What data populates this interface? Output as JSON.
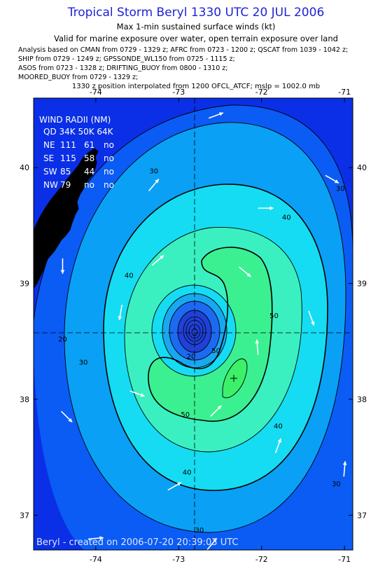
{
  "header": {
    "title": "Tropical Storm Beryl 1330 UTC 20 JUL 2006",
    "subtitle1": "Max 1-min sustained surface winds (kt)",
    "subtitle2": "Valid for marine exposure over water, open terrain exposure over land",
    "source_lines": [
      "Analysis based on  CMAN from 0729 - 1329 z;  AFRC from 0723 - 1200 z;  QSCAT from 1039 - 1042 z;",
      "SHIP from 0729 - 1249 z;  GPSSONDE_WL150 from 0725 - 1115 z;",
      "ASOS from 0723 - 1328 z;  DRIFTING_BUOY from 0800 - 1310 z;",
      "MOORED_BUOY from 0729 - 1329 z;"
    ],
    "position_note": "1330 z position interpolated from 1200 OFCL_ATCF; mslp = 1002.0 mb"
  },
  "wind_radii": {
    "title": "WIND RADII (NM)",
    "header": "QD 34K 50K 64K",
    "rows": [
      {
        "quadrant": "NE",
        "r34": "111",
        "r50": "61",
        "r64": "no"
      },
      {
        "quadrant": "SE",
        "r34": "115",
        "r50": "58",
        "r64": "no"
      },
      {
        "quadrant": "SW",
        "r34": "85",
        "r50": "44",
        "r64": "no"
      },
      {
        "quadrant": "NW",
        "r34": "79",
        "r50": "no",
        "r64": "no"
      }
    ]
  },
  "footer": "Beryl - created on 2006-07-20 20:39:03 UTC",
  "colors": {
    "title": "#1f23d6",
    "band_lt20": "#0a2fe6",
    "band_20": "#0a5cf5",
    "band_30": "#0aa0f5",
    "band_40": "#15dcf2",
    "band_50": "#3af0c0",
    "band_60": "#3cf06a",
    "inner_ring_a": "#18a8f0",
    "inner_ring_b": "#1c6af2",
    "core": "#2040d8"
  },
  "chart_data": {
    "type": "contour",
    "title": "Tropical Storm Beryl 1330 UTC 20 JUL 2006",
    "xlim": [
      -74.75,
      -70.9
    ],
    "ylim": [
      36.7,
      40.6
    ],
    "x_ticks": [
      -74,
      -73,
      -72,
      -71
    ],
    "y_ticks": [
      37,
      38,
      39,
      40
    ],
    "x_tick_labels": [
      "-74",
      "-73",
      "-72",
      "-71"
    ],
    "y_tick_labels": [
      "37",
      "38",
      "39",
      "40"
    ],
    "storm_center": {
      "lon": -72.98,
      "lat": 38.55
    },
    "max_wind_location": {
      "lon": -72.38,
      "lat": 38.12
    },
    "contour_levels_kt": [
      20,
      30,
      40,
      50,
      60
    ],
    "contour_labels": [
      {
        "text": "20",
        "lon": -74.4,
        "lat": 38.5
      },
      {
        "text": "30",
        "lon": -74.15,
        "lat": 38.3
      },
      {
        "text": "30",
        "lon": -72.75,
        "lat": 36.85
      },
      {
        "text": "30",
        "lon": -71.05,
        "lat": 39.8
      },
      {
        "text": "30",
        "lon": -73.3,
        "lat": 39.95
      },
      {
        "text": "30",
        "lon": -71.1,
        "lat": 37.25
      },
      {
        "text": "40",
        "lon": -73.6,
        "lat": 39.05
      },
      {
        "text": "40",
        "lon": -72.9,
        "lat": 37.35
      },
      {
        "text": "40",
        "lon": -71.8,
        "lat": 37.75
      },
      {
        "text": "40",
        "lon": -71.7,
        "lat": 39.55
      },
      {
        "text": "50",
        "lon": -72.92,
        "lat": 37.85
      },
      {
        "text": "50",
        "lon": -72.55,
        "lat": 38.4
      },
      {
        "text": "50",
        "lon": -71.85,
        "lat": 38.7
      },
      {
        "text": "20",
        "lon": -72.85,
        "lat": 38.35
      }
    ],
    "wind_arrows": [
      {
        "lon": -72.55,
        "lat": 40.45,
        "dir_deg": 70
      },
      {
        "lon": -71.15,
        "lat": 39.9,
        "dir_deg": 120
      },
      {
        "lon": -74.4,
        "lat": 39.15,
        "dir_deg": 180
      },
      {
        "lon": -73.3,
        "lat": 39.85,
        "dir_deg": 40
      },
      {
        "lon": -71.95,
        "lat": 39.65,
        "dir_deg": 90
      },
      {
        "lon": -73.25,
        "lat": 39.2,
        "dir_deg": 50
      },
      {
        "lon": -72.2,
        "lat": 39.1,
        "dir_deg": 130
      },
      {
        "lon": -73.7,
        "lat": 38.75,
        "dir_deg": 190
      },
      {
        "lon": -72.05,
        "lat": 38.45,
        "dir_deg": 355
      },
      {
        "lon": -71.4,
        "lat": 38.7,
        "dir_deg": 160
      },
      {
        "lon": -73.5,
        "lat": 38.05,
        "dir_deg": 110
      },
      {
        "lon": -72.55,
        "lat": 37.9,
        "dir_deg": 45
      },
      {
        "lon": -74.35,
        "lat": 37.85,
        "dir_deg": 135
      },
      {
        "lon": -71.8,
        "lat": 37.6,
        "dir_deg": 20
      },
      {
        "lon": -73.05,
        "lat": 37.25,
        "dir_deg": 60
      },
      {
        "lon": -71.0,
        "lat": 37.4,
        "dir_deg": 5
      },
      {
        "lon": -74.0,
        "lat": 36.8,
        "dir_deg": 85
      },
      {
        "lon": -72.6,
        "lat": 36.75,
        "dir_deg": 40
      }
    ]
  }
}
